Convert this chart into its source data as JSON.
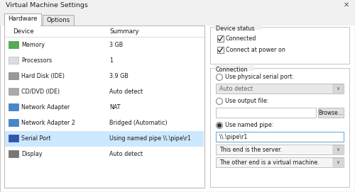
{
  "title": "Virtual Machine Settings",
  "bg_color": "#f0f0f0",
  "tab_hardware": "Hardware",
  "tab_options": "Options",
  "devices": [
    [
      "Memory",
      "3 GB"
    ],
    [
      "Processors",
      "1"
    ],
    [
      "Hard Disk (IDE)",
      "3.9 GB"
    ],
    [
      "CD/DVD (IDE)",
      "Auto detect"
    ],
    [
      "Network Adapter",
      "NAT"
    ],
    [
      "Network Adapter 2",
      "Bridged (Automatic)"
    ],
    [
      "Serial Port",
      "Using named pipe \\\\.\\pipe\\r1"
    ],
    [
      "Display",
      "Auto detect"
    ]
  ],
  "selected_row": 6,
  "device_status_label": "Device status",
  "checkbox1": "Connected",
  "checkbox2": "Connect at power on",
  "connection_label": "Connection",
  "radio1": "Use physical serial port:",
  "dropdown1": "Auto detect",
  "radio2": "Use output file:",
  "browse_btn": "Browse...",
  "radio3": "Use named pipe:",
  "pipe_value": "\\\\.\\pipe\\r1",
  "dropdown2": "This end is the server.",
  "dropdown3": "The other end is a virtual machine.",
  "icon_colors": [
    "#55aa55",
    "#dddddd",
    "#999999",
    "#aaaaaa",
    "#4488cc",
    "#4488cc",
    "#3355aa",
    "#777777"
  ],
  "icon_border_colors": [
    "#228822",
    "#aaaaaa",
    "#666666",
    "#888888",
    "#2255aa",
    "#2255aa",
    "#1133aa",
    "#555555"
  ]
}
